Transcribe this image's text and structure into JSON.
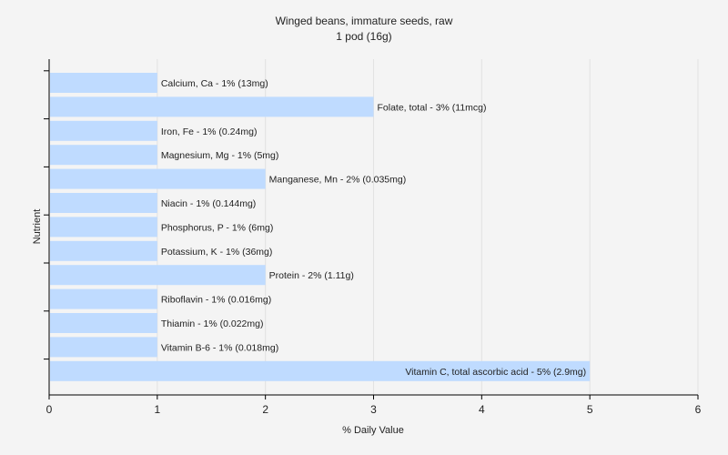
{
  "chart_data": {
    "type": "bar",
    "orientation": "horizontal",
    "title": "Winged beans, immature seeds, raw",
    "subtitle": "1 pod (16g)",
    "xlabel": "% Daily Value",
    "ylabel": "Nutrient",
    "xlim": [
      0,
      6
    ],
    "xticks": [
      "0",
      "1",
      "2",
      "3",
      "4",
      "5",
      "6"
    ],
    "grid": true,
    "bar_color": "#bfdbff",
    "categories": [
      "Calcium, Ca",
      "Folate, total",
      "Iron, Fe",
      "Magnesium, Mg",
      "Manganese, Mn",
      "Niacin",
      "Phosphorus, P",
      "Potassium, K",
      "Protein",
      "Riboflavin",
      "Thiamin",
      "Vitamin B-6",
      "Vitamin C, total ascorbic acid"
    ],
    "values": [
      1,
      3,
      1,
      1,
      2,
      1,
      1,
      1,
      2,
      1,
      1,
      1,
      5
    ],
    "labels": [
      "Calcium, Ca - 1% (13mg)",
      "Folate, total - 3% (11mcg)",
      "Iron, Fe - 1% (0.24mg)",
      "Magnesium, Mg - 1% (5mg)",
      "Manganese, Mn - 2% (0.035mg)",
      "Niacin - 1% (0.144mg)",
      "Phosphorus, P - 1% (6mg)",
      "Potassium, K - 1% (36mg)",
      "Protein - 2% (1.11g)",
      "Riboflavin - 1% (0.016mg)",
      "Thiamin - 1% (0.022mg)",
      "Vitamin B-6 - 1% (0.018mg)",
      "Vitamin C, total ascorbic acid - 5% (2.9mg)"
    ]
  }
}
